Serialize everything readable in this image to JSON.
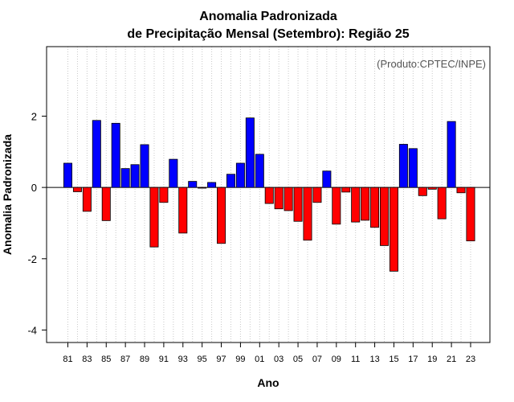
{
  "chart_data": {
    "type": "bar",
    "title": [
      "Anomalia Padronizada",
      "de Precipitação Mensal (Setembro): Região 25"
    ],
    "xlabel": "Ano",
    "ylabel": "Anomalia Padronizada",
    "credit": "(Produto:CPTEC/INPE)",
    "ylim": [
      -4.35,
      3.95
    ],
    "yticks": [
      -4,
      -2,
      0,
      2
    ],
    "ytick_labels": [
      "-4",
      "-2",
      "0",
      "2"
    ],
    "grid": "vertical dotted",
    "categories": [
      "1981",
      "1982",
      "1983",
      "1984",
      "1985",
      "1986",
      "1987",
      "1988",
      "1989",
      "1990",
      "1991",
      "1992",
      "1993",
      "1994",
      "1995",
      "1996",
      "1997",
      "1998",
      "1999",
      "2000",
      "2001",
      "2002",
      "2003",
      "2004",
      "2005",
      "2006",
      "2007",
      "2008",
      "2009",
      "2010",
      "2011",
      "2012",
      "2013",
      "2014",
      "2015",
      "2016",
      "2017",
      "2018",
      "2019",
      "2020",
      "2021",
      "2022",
      "2023"
    ],
    "xtick_labels": [
      "81",
      "83",
      "85",
      "87",
      "89",
      "91",
      "93",
      "95",
      "97",
      "99",
      "01",
      "03",
      "05",
      "07",
      "09",
      "11",
      "13",
      "15",
      "17",
      "19",
      "21",
      "23"
    ],
    "values": [
      0.68,
      -0.12,
      -0.67,
      1.88,
      -0.93,
      1.8,
      0.53,
      0.64,
      1.2,
      -1.67,
      -0.42,
      0.79,
      -1.28,
      0.17,
      -0.02,
      0.14,
      -1.57,
      0.37,
      0.68,
      1.95,
      0.93,
      -0.45,
      -0.6,
      -0.65,
      -0.95,
      -1.48,
      -0.42,
      0.46,
      -1.03,
      -0.13,
      -0.97,
      -0.92,
      -1.12,
      -1.63,
      -2.35,
      1.21,
      1.09,
      -0.23,
      -0.05,
      -0.88,
      1.85,
      -0.15,
      -1.5
    ],
    "colors": {
      "positive": "#0000ff",
      "negative": "#ff0000"
    }
  }
}
